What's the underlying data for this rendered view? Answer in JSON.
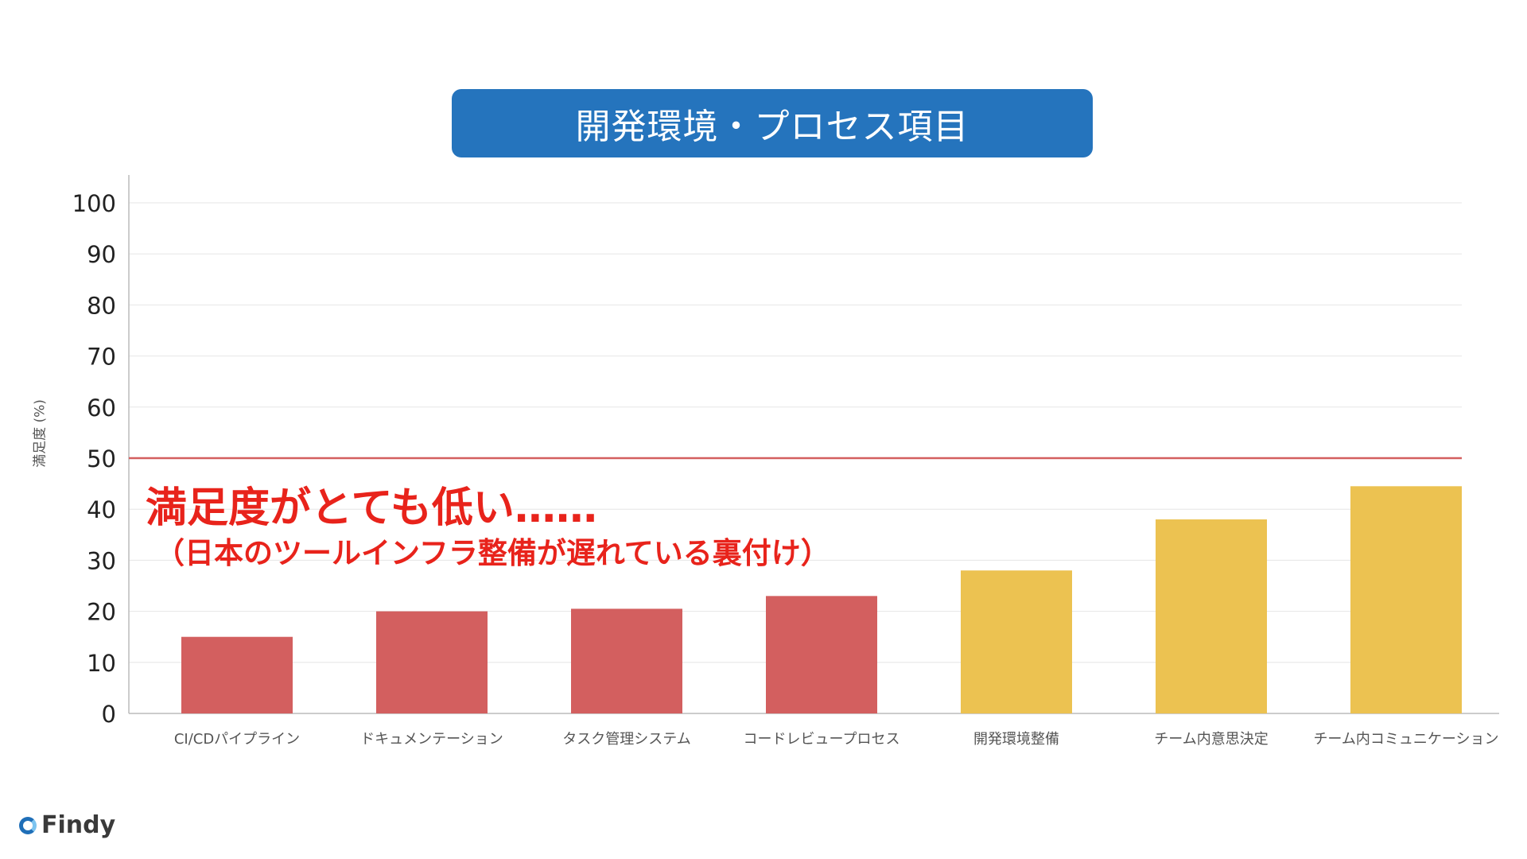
{
  "title": "開発環境・プロセス項目",
  "chart_data": {
    "type": "bar",
    "ylabel": "満足度 (%)",
    "ylim": [
      0,
      100
    ],
    "yticks": [
      0,
      10,
      20,
      30,
      40,
      50,
      60,
      70,
      80,
      90,
      100
    ],
    "categories": [
      "CI/CDパイプライン",
      "ドキュメンテーション",
      "タスク管理システム",
      "コードレビュープロセス",
      "開発環境整備",
      "チーム内意思決定",
      "チーム内コミュニケーション"
    ],
    "values": [
      15,
      20,
      20.5,
      23,
      28,
      38,
      44.5
    ],
    "bar_colors": [
      "#d35f5f",
      "#d35f5f",
      "#d35f5f",
      "#d35f5f",
      "#ecc251",
      "#ecc251",
      "#ecc251"
    ],
    "reference_line": {
      "value": 50,
      "color": "#d35f5f"
    },
    "grid": true
  },
  "annotation": {
    "main": "満足度がとても低い……",
    "sub": "（日本のツールインフラ整備が遅れている裏付け）",
    "color": "#e8231b"
  },
  "logo": {
    "text": "Findy"
  },
  "colors": {
    "title_bg": "#2574bd",
    "bad": "#d35f5f",
    "ok": "#ecc251"
  }
}
